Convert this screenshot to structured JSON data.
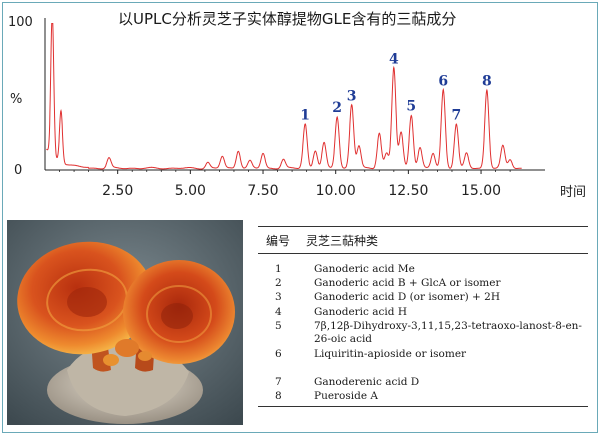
{
  "chart_data": {
    "type": "line",
    "title": "以UPLC分析灵芝子实体醇提物GLE含有的三萜成分",
    "xlabel": "时间",
    "ylabel": "%",
    "y_max_label": "100",
    "y_min_label": "0",
    "xlim": [
      0,
      17.2
    ],
    "ylim": [
      0,
      100
    ],
    "x_ticks": [
      2.5,
      5.0,
      7.5,
      10.0,
      12.5,
      15.0
    ],
    "x_tick_labels": [
      "2.50",
      "5.00",
      "7.50",
      "10.00",
      "12.50",
      "15.00"
    ],
    "line_color": "#e03030",
    "label_color": "#1f3c96",
    "peaks": [
      {
        "x": 0.25,
        "y": 98
      },
      {
        "x": 0.55,
        "y": 35
      },
      {
        "x": 2.2,
        "y": 7
      },
      {
        "x": 5.6,
        "y": 4
      },
      {
        "x": 6.1,
        "y": 8
      },
      {
        "x": 6.65,
        "y": 12
      },
      {
        "x": 7.05,
        "y": 5
      },
      {
        "x": 7.5,
        "y": 10
      },
      {
        "x": 8.2,
        "y": 6
      },
      {
        "x": 8.95,
        "y": 30
      },
      {
        "x": 9.3,
        "y": 12
      },
      {
        "x": 9.6,
        "y": 17
      },
      {
        "x": 10.05,
        "y": 35
      },
      {
        "x": 10.55,
        "y": 43
      },
      {
        "x": 10.8,
        "y": 15
      },
      {
        "x": 11.5,
        "y": 24
      },
      {
        "x": 11.75,
        "y": 10
      },
      {
        "x": 12.0,
        "y": 68
      },
      {
        "x": 12.25,
        "y": 24
      },
      {
        "x": 12.6,
        "y": 36
      },
      {
        "x": 12.9,
        "y": 14
      },
      {
        "x": 13.35,
        "y": 10
      },
      {
        "x": 13.7,
        "y": 53
      },
      {
        "x": 14.15,
        "y": 30
      },
      {
        "x": 14.5,
        "y": 10
      },
      {
        "x": 15.2,
        "y": 53
      },
      {
        "x": 15.75,
        "y": 15
      },
      {
        "x": 16.0,
        "y": 6
      }
    ],
    "peak_labels": [
      {
        "label": "1",
        "x": 8.95,
        "y": 30
      },
      {
        "label": "2",
        "x": 10.05,
        "y": 35
      },
      {
        "label": "3",
        "x": 10.55,
        "y": 43
      },
      {
        "label": "4",
        "x": 12.0,
        "y": 68
      },
      {
        "label": "5",
        "x": 12.6,
        "y": 36
      },
      {
        "label": "6",
        "x": 13.7,
        "y": 53
      },
      {
        "label": "7",
        "x": 14.15,
        "y": 30
      },
      {
        "label": "8",
        "x": 15.2,
        "y": 53
      }
    ]
  },
  "table": {
    "header_no": "编号",
    "header_name": "灵芝三萜种类",
    "rows": [
      {
        "no": "1",
        "name": "Ganoderic acid Me"
      },
      {
        "no": "2",
        "name": "Ganoderic acid B + GlcA or isomer"
      },
      {
        "no": "3",
        "name": "Ganoderic acid D (or isomer) + 2H"
      },
      {
        "no": "4",
        "name": "Ganoderic acid H"
      },
      {
        "no": "5",
        "name": "7β,12β-Dihydroxy-3,11,15,23-tetraoxo-lanost-8-en-26-oic acid"
      },
      {
        "no": "6",
        "name": "Liquiritin-apioside or isomer"
      },
      {
        "no": "7",
        "name": "Ganoderenic acid D"
      },
      {
        "no": "8",
        "name": "Pueroside A"
      }
    ]
  },
  "photo": {
    "subject": "lingzhi-mushroom-photo",
    "colors": {
      "cap": "#d9531e",
      "rim": "#f0a23a",
      "base": "#c9c2b4",
      "background": "#5c6c74"
    }
  }
}
